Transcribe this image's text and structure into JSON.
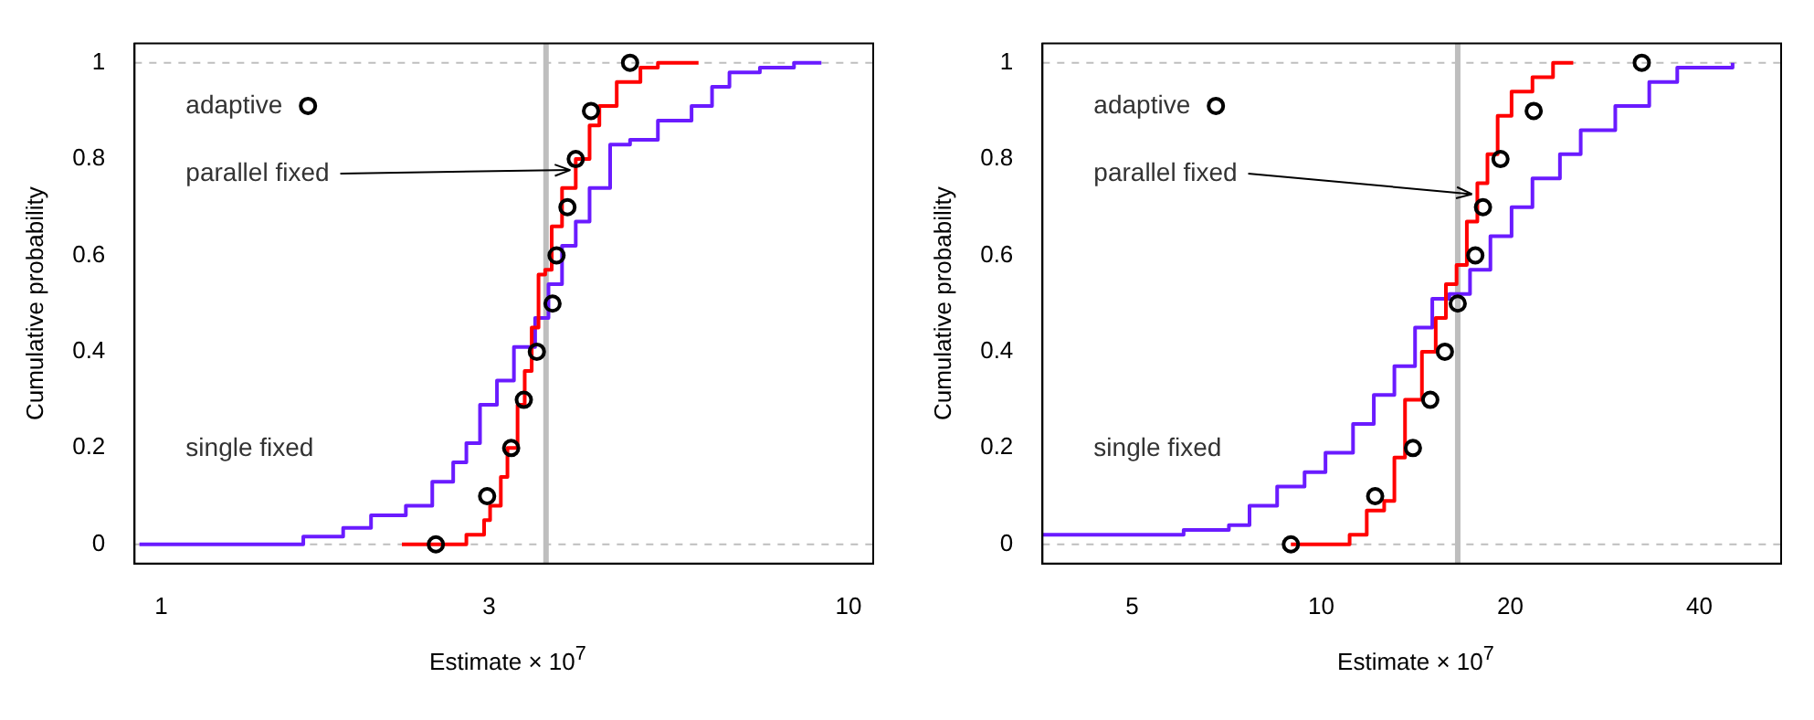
{
  "chart_data": [
    {
      "type": "step",
      "xlabel": "Estimate × 10$^{7}$",
      "ylabel": "Cumulative probability",
      "log": "x",
      "grid": false,
      "legend": "top left",
      "xlim": [
        0.915,
        10.86
      ],
      "xticks": [
        1,
        3,
        10
      ],
      "ylim": [
        -0.04,
        1.04
      ],
      "yticks": [
        0,
        0.2,
        0.4,
        0.6,
        0.8,
        1
      ],
      "series": [
        {
          "name": "adaptive",
          "type": "scatter",
          "marker": "circle",
          "color": "#000000",
          "x": [
            2.51,
            2.98,
            3.23,
            3.37,
            3.52,
            3.71,
            3.76,
            3.9,
            4.01,
            4.22,
            4.81
          ],
          "values": [
            0,
            0.1,
            0.2,
            0.3,
            0.4,
            0.5,
            0.6,
            0.7,
            0.8,
            0.9,
            1
          ]
        },
        {
          "name": "parallel fixed",
          "color": "#ff0000",
          "x": [
            2.24,
            2.72,
            2.78,
            2.95,
            3.01,
            3.12,
            3.19,
            3.3,
            3.38,
            3.46,
            3.54,
            3.62,
            3.7,
            3.83,
            4.01,
            4.2,
            4.34,
            4.6,
            4.98,
            5.28,
            6.05
          ],
          "values": [
            0,
            0,
            0.02,
            0.05,
            0.08,
            0.14,
            0.2,
            0.29,
            0.36,
            0.45,
            0.56,
            0.57,
            0.66,
            0.74,
            0.8,
            0.87,
            0.91,
            0.96,
            0.99,
            1,
            1
          ]
        },
        {
          "name": "single fixed",
          "color": "#6a1bff",
          "x": [
            0.93,
            1.55,
            1.61,
            1.84,
            2.02,
            2.27,
            2.48,
            2.66,
            2.78,
            2.91,
            3.08,
            3.26,
            3.5,
            3.66,
            3.83,
            4.01,
            4.2,
            4.5,
            4.81,
            5.28,
            5.91,
            6.33,
            6.71,
            7.43,
            8.33,
            9.13
          ],
          "values": [
            0,
            0,
            0.016,
            0.034,
            0.06,
            0.08,
            0.13,
            0.17,
            0.21,
            0.29,
            0.34,
            0.41,
            0.47,
            0.54,
            0.62,
            0.67,
            0.74,
            0.83,
            0.84,
            0.88,
            0.91,
            0.95,
            0.98,
            0.99,
            1,
            1
          ]
        }
      ],
      "ref_lines": [
        {
          "axis": "y",
          "value": 0,
          "color": "#bebebe",
          "line_style": "dashed"
        },
        {
          "axis": "y",
          "value": 1,
          "color": "#bebebe",
          "line_style": "dashed"
        },
        {
          "axis": "x",
          "value": 3.63,
          "color": "#bebebe",
          "line_style": "solid"
        }
      ]
    },
    {
      "type": "step",
      "xlabel": "Estimate × 10$^{7}$",
      "ylabel": "Cumulative probability",
      "log": "x",
      "grid": false,
      "legend": "top left",
      "xlim": [
        3.6,
        54
      ],
      "xticks": [
        5,
        10,
        20,
        40
      ],
      "ylim": [
        -0.04,
        1.04
      ],
      "yticks": [
        0,
        0.2,
        0.4,
        0.6,
        0.8,
        1
      ],
      "series": [
        {
          "name": "adaptive",
          "type": "scatter",
          "marker": "circle",
          "color": "#000000",
          "x": [
            8.95,
            12.19,
            14.0,
            14.92,
            15.74,
            16.5,
            17.6,
            18.1,
            19.3,
            21.8,
            32.4
          ],
          "values": [
            0,
            0.1,
            0.2,
            0.3,
            0.4,
            0.5,
            0.6,
            0.7,
            0.8,
            0.9,
            1
          ]
        },
        {
          "name": "parallel fixed",
          "color": "#ff0000",
          "x": [
            8.95,
            10.69,
            11.1,
            11.82,
            12.6,
            13.08,
            13.6,
            14.47,
            15.22,
            15.8,
            16.43,
            17.06,
            17.73,
            18.4,
            19.1,
            20.1,
            21.7,
            23.4,
            25.2
          ],
          "values": [
            0,
            0,
            0.02,
            0.07,
            0.09,
            0.18,
            0.3,
            0.4,
            0.47,
            0.54,
            0.58,
            0.67,
            0.75,
            0.81,
            0.89,
            0.94,
            0.97,
            1,
            1
          ]
        },
        {
          "name": "single fixed",
          "color": "#6a1bff",
          "x": [
            3.6,
            6.04,
            7.13,
            7.69,
            8.51,
            9.41,
            10.16,
            11.24,
            12.13,
            13.08,
            14.11,
            15.03,
            16.0,
            17.26,
            18.6,
            20.1,
            21.7,
            24.0,
            25.9,
            29.4,
            33.3,
            36.9,
            45.2
          ],
          "values": [
            0.02,
            0.03,
            0.04,
            0.08,
            0.12,
            0.15,
            0.19,
            0.25,
            0.31,
            0.37,
            0.45,
            0.51,
            0.52,
            0.57,
            0.64,
            0.7,
            0.76,
            0.81,
            0.86,
            0.91,
            0.96,
            0.99,
            1
          ]
        }
      ],
      "ref_lines": [
        {
          "axis": "y",
          "value": 0,
          "color": "#bebebe",
          "line_style": "dashed"
        },
        {
          "axis": "y",
          "value": 1,
          "color": "#bebebe",
          "line_style": "dashed"
        },
        {
          "axis": "x",
          "value": 16.5,
          "color": "#bebebe",
          "line_style": "solid"
        }
      ]
    }
  ]
}
